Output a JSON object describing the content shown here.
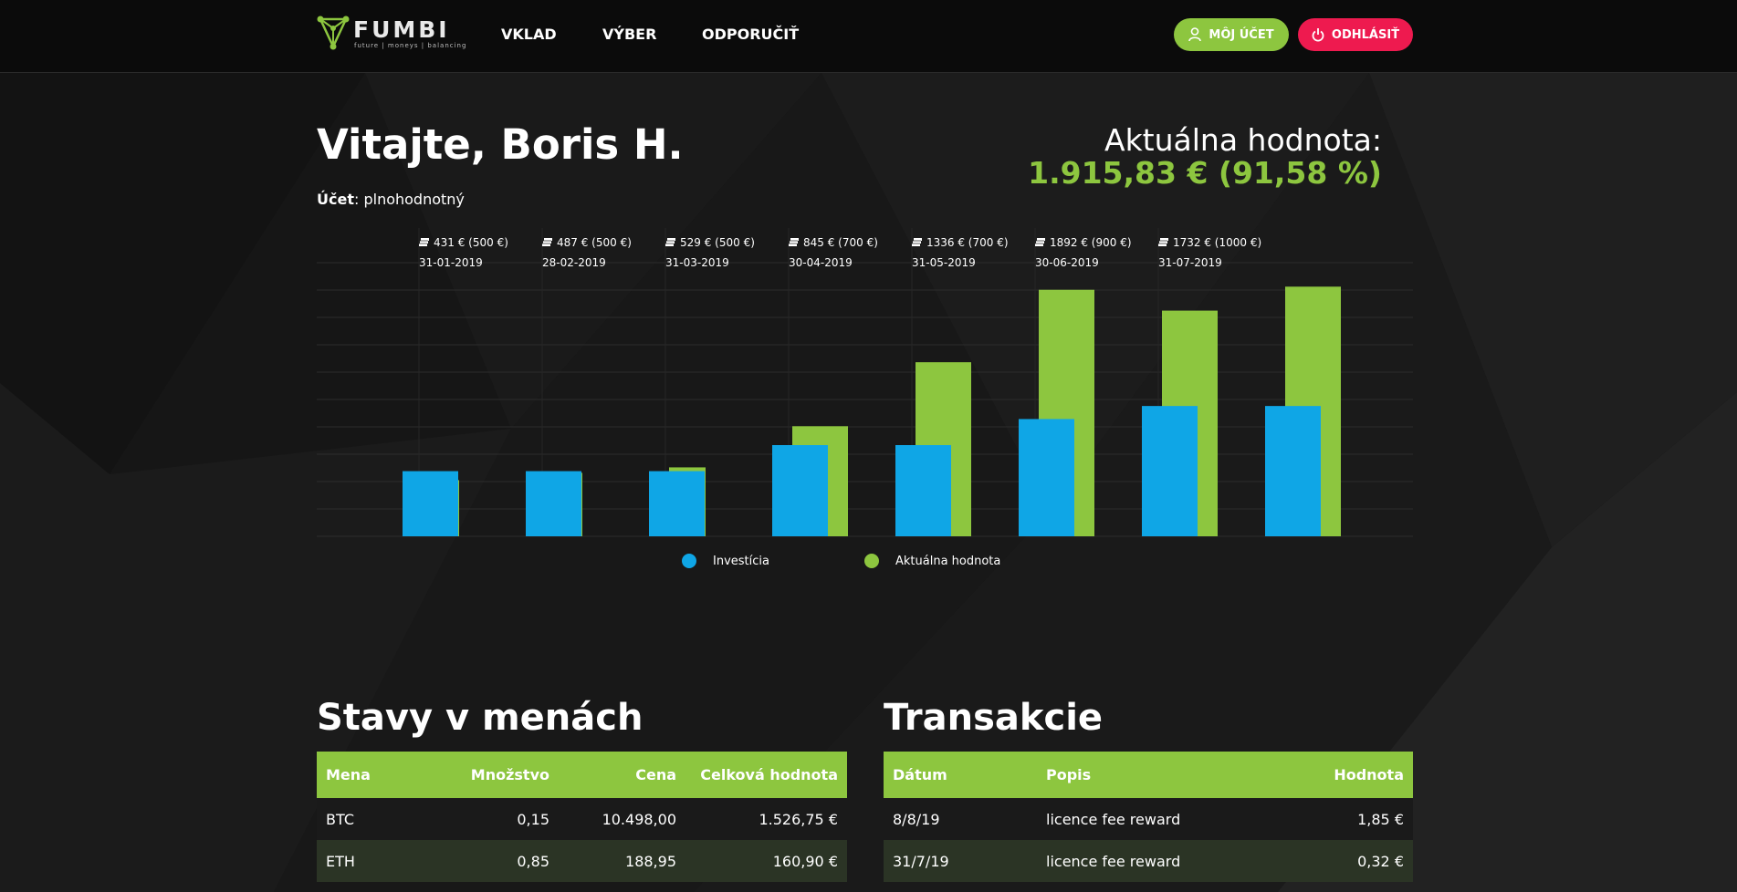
{
  "brand": {
    "name": "FUMBI",
    "tagline": "future | moneys | balancing",
    "accent": "#8dc63f",
    "danger": "#ee1a4f",
    "invest_color": "#0fa6e6"
  },
  "nav": {
    "deposit": "VKLAD",
    "withdraw": "VÝBER",
    "refer": "ODPORUČIŤ"
  },
  "header_buttons": {
    "account": "MÔJ ÚČET",
    "logout": "ODHLÁSIŤ"
  },
  "welcome": "Vitajte, Boris H.",
  "account": {
    "label": "Účet",
    "value": ": plnohodnotný"
  },
  "current_value": {
    "label": "Aktuálna hodnota:",
    "amount": "1.915,83 € (91,58 %)"
  },
  "chart_data": {
    "type": "bar",
    "categories": [
      "31-01-2019",
      "28-02-2019",
      "31-03-2019",
      "30-04-2019",
      "31-05-2019",
      "30-06-2019",
      "31-07-2019",
      ""
    ],
    "bar_labels": [
      "431 € (500 €)",
      "487 € (500 €)",
      "529 € (500 €)",
      "845 € (700 €)",
      "1336 € (700 €)",
      "1892 € (900 €)",
      "1732 € (1000 €)",
      ""
    ],
    "series": [
      {
        "name": "Investícia",
        "values": [
          500,
          500,
          500,
          700,
          700,
          900,
          1000,
          1000
        ],
        "color": "#0fa6e6"
      },
      {
        "name": "Aktuálna hodnota",
        "values": [
          431,
          487,
          529,
          845,
          1336,
          1892,
          1732,
          1916
        ],
        "color": "#8dc63f"
      }
    ],
    "ylim": [
      0,
      2100
    ],
    "grid": true,
    "legend": "bottom"
  },
  "balances": {
    "title": "Stavy v menách",
    "columns": [
      "Mena",
      "Množstvo",
      "Cena",
      "Celková hodnota"
    ],
    "rows": [
      [
        "BTC",
        "0,15",
        "10.498,00",
        "1.526,75 €"
      ],
      [
        "ETH",
        "0,85",
        "188,95",
        "160,90 €"
      ]
    ]
  },
  "transactions": {
    "title": "Transakcie",
    "columns": [
      "Dátum",
      "Popis",
      "Hodnota"
    ],
    "rows": [
      [
        "8/8/19",
        "licence fee reward",
        "1,85 €"
      ],
      [
        "31/7/19",
        "licence fee reward",
        "0,32 €"
      ]
    ]
  }
}
